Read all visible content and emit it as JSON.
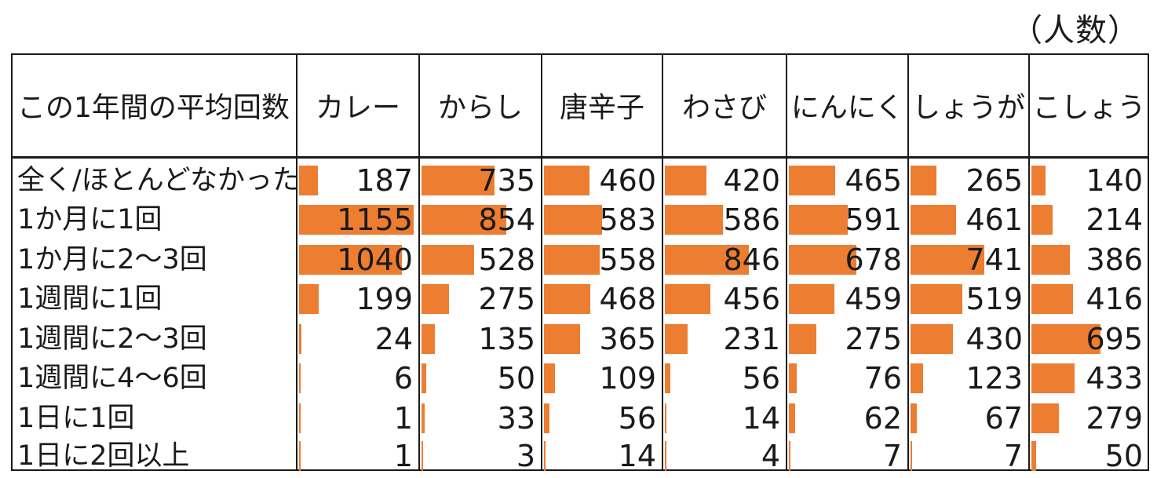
{
  "unit_label": "（人数）",
  "corner_header": "この1年間の平均回数",
  "colors": {
    "bar": "#ed7d31",
    "border": "#1a1a1a"
  },
  "chart_data": {
    "type": "table",
    "title": "",
    "categories": [
      "全く/ほとんどなかった",
      "1か月に1回",
      "1か月に2～3回",
      "1週間に1回",
      "1週間に2～3回",
      "1週間に4～6回",
      "1日に1回",
      "1日に2回以上"
    ],
    "series": [
      {
        "name": "カレー",
        "values": [
          187,
          1155,
          1040,
          199,
          24,
          6,
          1,
          1
        ]
      },
      {
        "name": "からし",
        "values": [
          735,
          854,
          528,
          275,
          135,
          50,
          33,
          3
        ]
      },
      {
        "name": "唐辛子",
        "values": [
          460,
          583,
          558,
          468,
          365,
          109,
          56,
          14
        ]
      },
      {
        "name": "わさび",
        "values": [
          420,
          586,
          846,
          456,
          231,
          56,
          14,
          4
        ]
      },
      {
        "name": "にんにく",
        "values": [
          465,
          591,
          678,
          459,
          275,
          76,
          62,
          7
        ]
      },
      {
        "name": "しょうが",
        "values": [
          265,
          461,
          741,
          519,
          430,
          123,
          67,
          7
        ]
      },
      {
        "name": "こしょう",
        "values": [
          140,
          214,
          386,
          416,
          695,
          433,
          279,
          50
        ]
      }
    ]
  }
}
